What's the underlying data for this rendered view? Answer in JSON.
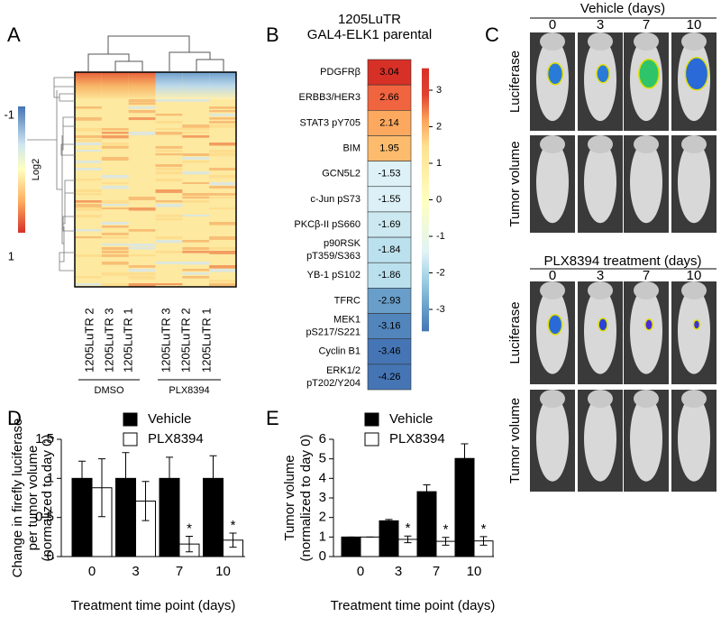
{
  "panel_labels": [
    "A",
    "B",
    "C",
    "D",
    "E"
  ],
  "panel_a": {
    "colorbar_label": "Log2",
    "colorbar_ticks": [
      -1,
      1
    ],
    "columns": [
      "1205LuTR 2",
      "1205LuTR 3",
      "1205LuTR 1",
      "1205LuTR 3",
      "1205LuTR 2",
      "1205LuTR 1"
    ],
    "groups": [
      "DMSO",
      "PLX8394"
    ]
  },
  "panel_b": {
    "title": [
      "1205LuTR",
      "GAL4-ELK1 parental"
    ],
    "rows": [
      {
        "label": [
          "PDGFRβ"
        ],
        "value": 3.04
      },
      {
        "label": [
          "ERBB3/HER3"
        ],
        "value": 2.66
      },
      {
        "label": [
          "STAT3 pY705"
        ],
        "value": 2.14
      },
      {
        "label": [
          "BIM"
        ],
        "value": 1.95
      },
      {
        "label": [
          "GCN5L2"
        ],
        "value": -1.53
      },
      {
        "label": [
          "c-Jun pS73"
        ],
        "value": -1.55
      },
      {
        "label": [
          "PKCβ-II pS660"
        ],
        "value": -1.69
      },
      {
        "label": [
          "p90RSK",
          "pT359/S363"
        ],
        "value": -1.84
      },
      {
        "label": [
          "YB-1 pS102"
        ],
        "value": -1.86
      },
      {
        "label": [
          "TFRC"
        ],
        "value": -2.93
      },
      {
        "label": [
          "MEK1",
          "pS217/S221"
        ],
        "value": -3.16
      },
      {
        "label": [
          "Cyclin B1"
        ],
        "value": -3.46
      },
      {
        "label": [
          "ERK1/2",
          "pT202/Y204"
        ],
        "value": -4.26
      }
    ],
    "colorbar_ticks": [
      3,
      2,
      1,
      0,
      -1,
      -2,
      -3
    ]
  },
  "panel_c": {
    "groups": [
      {
        "title": "Vehicle (days)",
        "days": [
          "0",
          "3",
          "7",
          "10"
        ],
        "rows": [
          "Luciferase",
          "Tumor volume"
        ]
      },
      {
        "title": "PLX8394 treatment (days)",
        "days": [
          "0",
          "3",
          "7",
          "10"
        ],
        "rows": [
          "Luciferase",
          "Tumor volume"
        ]
      }
    ]
  },
  "chart_data": [
    {
      "type": "bar",
      "y_label": [
        "Change in firefly luciferase",
        "per tumor volume",
        "(normalized to day 0)"
      ],
      "x_label": "Treatment time point (days)",
      "categories": [
        "0",
        "3",
        "7",
        "10"
      ],
      "series": [
        {
          "name": "Vehicle",
          "color": "#000000",
          "values": [
            1,
            1,
            1,
            1
          ],
          "errors": [
            0.22,
            0.33,
            0.27,
            0.29
          ],
          "significance": [
            null,
            null,
            null,
            null
          ]
        },
        {
          "name": "PLX8394",
          "color": "#ffffff",
          "values": [
            0.88,
            0.71,
            0.16,
            0.21
          ],
          "errors": [
            0.37,
            0.25,
            0.1,
            0.09
          ],
          "significance": [
            null,
            null,
            "*",
            "*"
          ]
        }
      ],
      "ylim": [
        0,
        1.5
      ],
      "yticks": [
        0,
        0.5,
        1,
        1.5
      ]
    },
    {
      "type": "bar",
      "y_label": [
        "Tumor volume",
        "(normalized to day 0)"
      ],
      "x_label": "Treatment time point (days)",
      "categories": [
        "0",
        "3",
        "7",
        "10"
      ],
      "series": [
        {
          "name": "Vehicle",
          "color": "#000000",
          "values": [
            1,
            1.83,
            3.32,
            5.02
          ],
          "errors": [
            0,
            0.07,
            0.35,
            0.75
          ],
          "significance": [
            null,
            null,
            null,
            null
          ]
        },
        {
          "name": "PLX8394",
          "color": "#ffffff",
          "values": [
            1,
            0.88,
            0.78,
            0.8
          ],
          "errors": [
            0,
            0.17,
            0.2,
            0.22
          ],
          "significance": [
            null,
            "*",
            "*",
            "*"
          ]
        }
      ],
      "ylim": [
        0,
        6
      ],
      "yticks": [
        0,
        1,
        2,
        3,
        4,
        5,
        6
      ]
    }
  ]
}
